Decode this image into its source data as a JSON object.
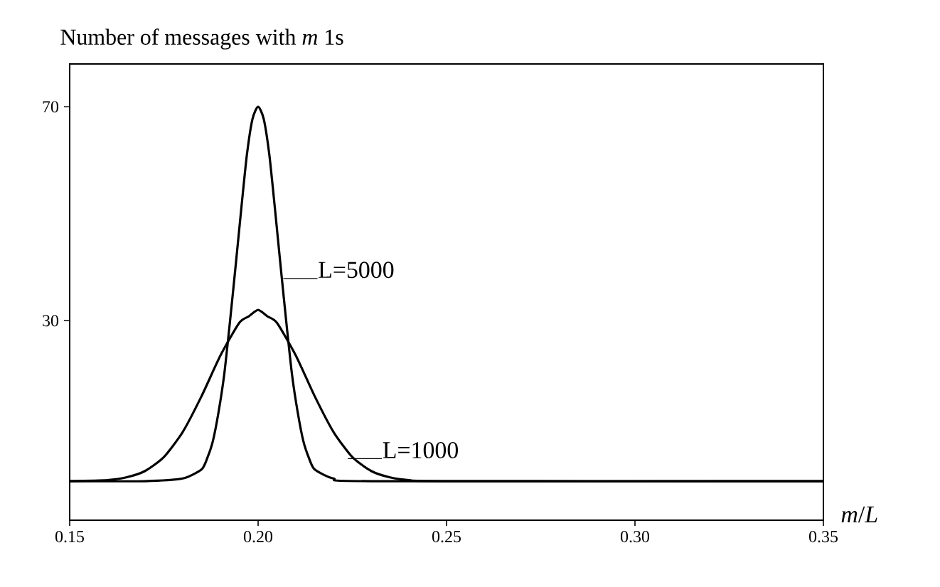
{
  "chart_data": {
    "type": "line",
    "title": "Number of messages with *m* 1s",
    "xlabel": "*m*/*L*",
    "xlim": [
      0.15,
      0.35
    ],
    "ylim": [
      -7.3,
      78
    ],
    "xticks": [
      {
        "value": 0.15,
        "label": "0.15"
      },
      {
        "value": 0.2,
        "label": "0.20"
      },
      {
        "value": 0.25,
        "label": "0.25"
      },
      {
        "value": 0.3,
        "label": "0.30"
      },
      {
        "value": 0.35,
        "label": "0.35"
      }
    ],
    "yticks": [
      30,
      70
    ],
    "grid": false,
    "marker": "none",
    "line_style": "solid",
    "series": [
      {
        "color": "#000000",
        "x": [
          0.15,
          0.17,
          0.18,
          0.185,
          0.1865,
          0.188,
          0.1895,
          0.191,
          0.1925,
          0.194,
          0.1955,
          0.197,
          0.1985,
          0.2,
          0.2015,
          0.203,
          0.2045,
          0.206,
          0.2075,
          0.209,
          0.2105,
          0.212,
          0.2135,
          0.215,
          0.22,
          0.23,
          0.35
        ],
        "values": [
          0,
          0,
          0.5,
          2.2,
          4.3,
          7.5,
          12.9,
          19.9,
          29.6,
          40,
          50.7,
          60.9,
          67.7,
          70,
          67.7,
          60.9,
          50.7,
          40,
          29.6,
          19.9,
          12.9,
          7.5,
          4.3,
          2.2,
          0.5,
          0,
          0
        ]
      },
      {
        "color": "#000000",
        "x": [
          0.15,
          0.16,
          0.165,
          0.17,
          0.175,
          0.18,
          0.185,
          0.19,
          0.195,
          0.1975,
          0.2,
          0.2025,
          0.205,
          0.21,
          0.215,
          0.22,
          0.225,
          0.23,
          0.235,
          0.24,
          0.25,
          0.35
        ],
        "values": [
          0,
          0.2,
          0.7,
          1.9,
          4.5,
          9.2,
          15.9,
          23.5,
          29.6,
          30.8,
          32,
          30.8,
          29.6,
          23.5,
          15.9,
          9.2,
          4.5,
          1.9,
          0.7,
          0.2,
          0,
          0
        ]
      }
    ],
    "annotations": [
      {
        "text": "L=5000",
        "x": 0.2067,
        "y": 37.9
      },
      {
        "text": "L=1000",
        "x": 0.2238,
        "y": 4.2
      }
    ]
  }
}
